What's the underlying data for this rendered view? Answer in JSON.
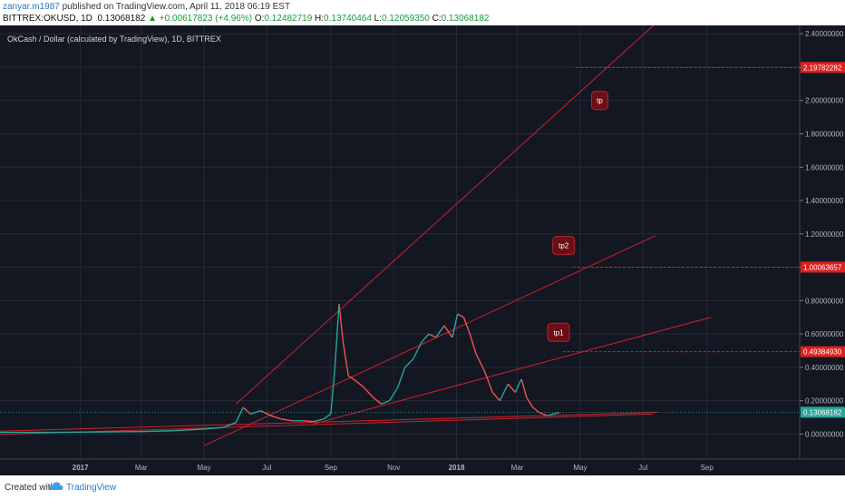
{
  "header": {
    "author": "zanyar.m1987",
    "published_text": " published on TradingView.com, April 11, 2018 06:19 EST",
    "symbol": "BITTREX:OKUSD, 1D",
    "last": "0.13068182",
    "change_text": "▲ +0.00617823 (+4.96%)",
    "o_label": "O:",
    "o_value": "0.12482719",
    "h_label": "H:",
    "h_value": "0.13740464",
    "l_label": "L:",
    "l_value": "0.12059350",
    "c_label": "C:",
    "c_value": "0.13068182"
  },
  "footer": {
    "created_with": "Created with",
    "brand": "TradingView"
  },
  "colors": {
    "background": "#131722",
    "grid": "#252a36",
    "up": "#26a69a",
    "down": "#ef5350",
    "trend": "#d0202a",
    "label_bg": "#6b0f14"
  },
  "chart_data": {
    "type": "line",
    "title": "OkCash / Dollar (calculated by TradingView), 1D, BITTREX",
    "xlabel": "",
    "ylabel": "",
    "ylim": [
      -0.15,
      2.45
    ],
    "y_ticks": [
      "2.40000000",
      "2.20000000",
      "2.00000000",
      "1.80000000",
      "1.60000000",
      "1.40000000",
      "1.20000000",
      "1.00000000",
      "0.80000000",
      "0.60000000",
      "0.40000000",
      "0.20000000",
      "0.00000000"
    ],
    "y_tick_values": [
      2.4,
      2.2,
      2.0,
      1.8,
      1.6,
      1.4,
      1.2,
      1.0,
      0.8,
      0.6,
      0.4,
      0.2,
      0.0
    ],
    "x_ticks": [
      "2017",
      "Mar",
      "May",
      "Jul",
      "Sep",
      "Nov",
      "2018",
      "Mar",
      "May",
      "Jul",
      "Sep"
    ],
    "x_tick_dates": [
      "2017-01-01",
      "2017-03-01",
      "2017-05-01",
      "2017-07-01",
      "2017-09-01",
      "2017-11-01",
      "2018-01-01",
      "2018-03-01",
      "2018-05-01",
      "2018-07-01",
      "2018-09-01"
    ],
    "x_range_dates": [
      "2016-10-15",
      "2018-11-30"
    ],
    "series": [
      {
        "values": [
          [
            "2016-10-15",
            0.01
          ],
          [
            "2016-12-01",
            0.01
          ],
          [
            "2017-01-15",
            0.012
          ],
          [
            "2017-03-01",
            0.015
          ],
          [
            "2017-04-01",
            0.02
          ],
          [
            "2017-05-01",
            0.03
          ],
          [
            "2017-05-20",
            0.04
          ],
          [
            "2017-06-01",
            0.07
          ],
          [
            "2017-06-08",
            0.16
          ],
          [
            "2017-06-15",
            0.12
          ],
          [
            "2017-06-25",
            0.14
          ],
          [
            "2017-07-05",
            0.11
          ],
          [
            "2017-07-15",
            0.09
          ],
          [
            "2017-07-25",
            0.08
          ],
          [
            "2017-08-05",
            0.08
          ],
          [
            "2017-08-15",
            0.075
          ],
          [
            "2017-08-25",
            0.09
          ],
          [
            "2017-09-01",
            0.12
          ],
          [
            "2017-09-05",
            0.4
          ],
          [
            "2017-09-09",
            0.78
          ],
          [
            "2017-09-13",
            0.55
          ],
          [
            "2017-09-18",
            0.35
          ],
          [
            "2017-09-25",
            0.32
          ],
          [
            "2017-10-03",
            0.28
          ],
          [
            "2017-10-12",
            0.22
          ],
          [
            "2017-10-20",
            0.18
          ],
          [
            "2017-10-28",
            0.2
          ],
          [
            "2017-11-05",
            0.28
          ],
          [
            "2017-11-12",
            0.4
          ],
          [
            "2017-11-20",
            0.45
          ],
          [
            "2017-11-28",
            0.55
          ],
          [
            "2017-12-05",
            0.6
          ],
          [
            "2017-12-12",
            0.58
          ],
          [
            "2017-12-20",
            0.65
          ],
          [
            "2017-12-28",
            0.58
          ],
          [
            "2018-01-02",
            0.72
          ],
          [
            "2018-01-08",
            0.7
          ],
          [
            "2018-01-14",
            0.6
          ],
          [
            "2018-01-20",
            0.48
          ],
          [
            "2018-01-28",
            0.38
          ],
          [
            "2018-02-05",
            0.25
          ],
          [
            "2018-02-12",
            0.2
          ],
          [
            "2018-02-20",
            0.3
          ],
          [
            "2018-02-27",
            0.25
          ],
          [
            "2018-03-05",
            0.33
          ],
          [
            "2018-03-10",
            0.22
          ],
          [
            "2018-03-16",
            0.16
          ],
          [
            "2018-03-22",
            0.13
          ],
          [
            "2018-03-30",
            0.11
          ],
          [
            "2018-04-05",
            0.12
          ],
          [
            "2018-04-11",
            0.13
          ]
        ]
      }
    ],
    "current_price": {
      "value": 0.13068182,
      "label": "0.13068182"
    },
    "trendlines": [
      {
        "from": [
          "2017-06-01",
          0.18
        ],
        "to": [
          "2018-07-20",
          2.5
        ]
      },
      {
        "from": [
          "2017-05-01",
          -0.07
        ],
        "to": [
          "2018-07-13",
          1.19
        ]
      },
      {
        "from": [
          "2017-08-15",
          0.06
        ],
        "to": [
          "2018-09-05",
          0.7
        ]
      },
      {
        "from": [
          "2016-10-01",
          0.015
        ],
        "to": [
          "2018-07-15",
          0.13
        ]
      },
      {
        "from": [
          "2016-10-01",
          -0.005
        ],
        "to": [
          "2018-07-10",
          0.12
        ]
      }
    ],
    "targets": [
      {
        "name": "tp",
        "value": 2.19782282,
        "label": "2.19782282",
        "date": "2018-04-27"
      },
      {
        "name": "tp2",
        "value": 1.00063657,
        "label": "1.00063657",
        "date": "2018-04-24"
      },
      {
        "name": "tp1",
        "value": 0.4938493,
        "label": "0.49384930",
        "date": "2018-04-14"
      }
    ],
    "annotations": [
      {
        "text": "tp",
        "date": "2018-05-20",
        "value": 2.0
      },
      {
        "text": "tp2",
        "date": "2018-04-15",
        "value": 1.13
      },
      {
        "text": "tp1",
        "date": "2018-04-10",
        "value": 0.61
      }
    ],
    "grid": true
  }
}
